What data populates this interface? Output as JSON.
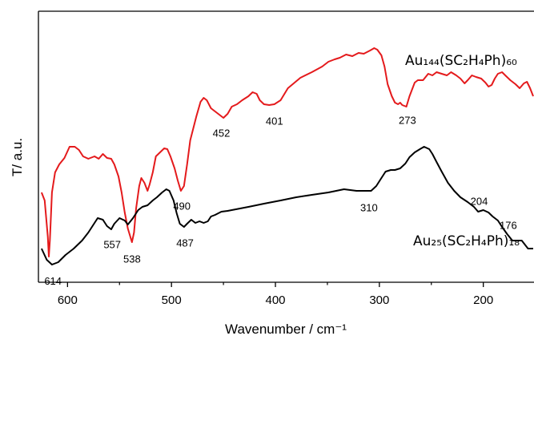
{
  "chart_data": {
    "type": "line",
    "x_label": "Wavenumber / cm⁻¹",
    "y_label": "T/ a.u.",
    "xlim": [
      628,
      152
    ],
    "ylim": [
      0,
      338
    ],
    "xticks": [
      600,
      500,
      400,
      300,
      200
    ],
    "xminor_ticks": [
      550,
      450,
      350,
      250
    ],
    "series": [
      {
        "name": "Au₁₄₄(SC₂H₄Ph)₆₀",
        "color": "#e41a1c",
        "x": [
          625,
          622,
          621,
          619,
          618,
          617,
          615,
          612,
          608,
          603,
          598,
          593,
          589,
          585,
          580,
          574,
          570,
          566,
          562,
          558,
          555,
          551,
          548,
          545,
          542,
          538,
          536,
          534,
          531,
          529,
          526,
          523,
          521,
          518,
          515,
          511,
          507,
          504,
          501,
          497,
          494,
          491,
          488,
          485,
          482,
          476,
          472,
          469,
          466,
          462,
          457,
          452,
          450,
          446,
          442,
          437,
          432,
          426,
          422,
          418,
          415,
          411,
          406,
          401,
          395,
          388,
          376,
          365,
          355,
          349,
          343,
          338,
          332,
          326,
          320,
          315,
          309,
          305,
          302,
          298,
          295,
          292,
          288,
          285,
          282,
          280,
          278,
          274,
          271,
          266,
          263,
          258,
          253,
          249,
          245,
          240,
          235,
          231,
          226,
          222,
          218,
          215,
          211,
          207,
          202,
          198,
          195,
          192,
          189,
          186,
          182,
          178,
          174,
          169,
          165,
          161,
          158,
          155,
          152
        ],
        "values": [
          112,
          102,
          87,
          57,
          32,
          52,
          112,
          137,
          147,
          155,
          169,
          169,
          165,
          157,
          154,
          157,
          154,
          160,
          155,
          154,
          147,
          132,
          112,
          87,
          67,
          50,
          62,
          92,
          120,
          130,
          124,
          114,
          122,
          137,
          157,
          162,
          167,
          166,
          157,
          142,
          127,
          114,
          120,
          147,
          177,
          207,
          225,
          230,
          227,
          217,
          212,
          207,
          205,
          210,
          219,
          222,
          227,
          232,
          237,
          235,
          227,
          222,
          221,
          222,
          227,
          242,
          255,
          262,
          269,
          275,
          278,
          280,
          284,
          282,
          286,
          285,
          289,
          292,
          290,
          283,
          269,
          247,
          232,
          224,
          222,
          224,
          221,
          219,
          232,
          249,
          252,
          252,
          260,
          258,
          262,
          260,
          258,
          262,
          258,
          254,
          248,
          252,
          258,
          256,
          254,
          249,
          244,
          246,
          254,
          260,
          262,
          257,
          252,
          247,
          242,
          248,
          250,
          242,
          232
        ],
        "peaks": [
          538,
          490,
          452,
          401,
          273
        ]
      },
      {
        "name": "Au₂₅(SC₂H₄Ph)₁₈",
        "color": "#000000",
        "x": [
          625,
          620,
          615,
          609,
          602,
          594,
          586,
          580,
          575,
          571,
          566,
          562,
          558,
          555,
          550,
          545,
          542,
          537,
          532,
          528,
          523,
          518,
          514,
          509,
          505,
          502,
          498,
          495,
          492,
          488,
          485,
          481,
          477,
          473,
          469,
          465,
          462,
          458,
          452,
          446,
          442,
          426,
          411,
          395,
          380,
          365,
          349,
          334,
          322,
          312,
          308,
          303,
          298,
          294,
          289,
          285,
          280,
          275,
          271,
          266,
          261,
          257,
          252,
          249,
          245,
          240,
          234,
          228,
          222,
          215,
          209,
          205,
          200,
          195,
          191,
          186,
          182,
          177,
          172,
          168,
          163,
          160,
          157,
          152
        ],
        "values": [
          42,
          28,
          22,
          25,
          34,
          42,
          52,
          62,
          72,
          80,
          78,
          70,
          66,
          73,
          80,
          77,
          72,
          80,
          90,
          94,
          96,
          102,
          106,
          112,
          116,
          114,
          102,
          86,
          73,
          69,
          73,
          78,
          74,
          76,
          74,
          76,
          82,
          84,
          88,
          89,
          90,
          94,
          98,
          102,
          106,
          109,
          112,
          116,
          114,
          114,
          114,
          120,
          130,
          138,
          140,
          140,
          142,
          148,
          156,
          162,
          166,
          169,
          166,
          160,
          150,
          138,
          124,
          114,
          106,
          100,
          94,
          88,
          90,
          87,
          82,
          77,
          69,
          60,
          52,
          52,
          52,
          47,
          42,
          42
        ],
        "peaks": [
          614,
          557,
          487,
          310,
          204,
          176
        ]
      }
    ]
  }
}
